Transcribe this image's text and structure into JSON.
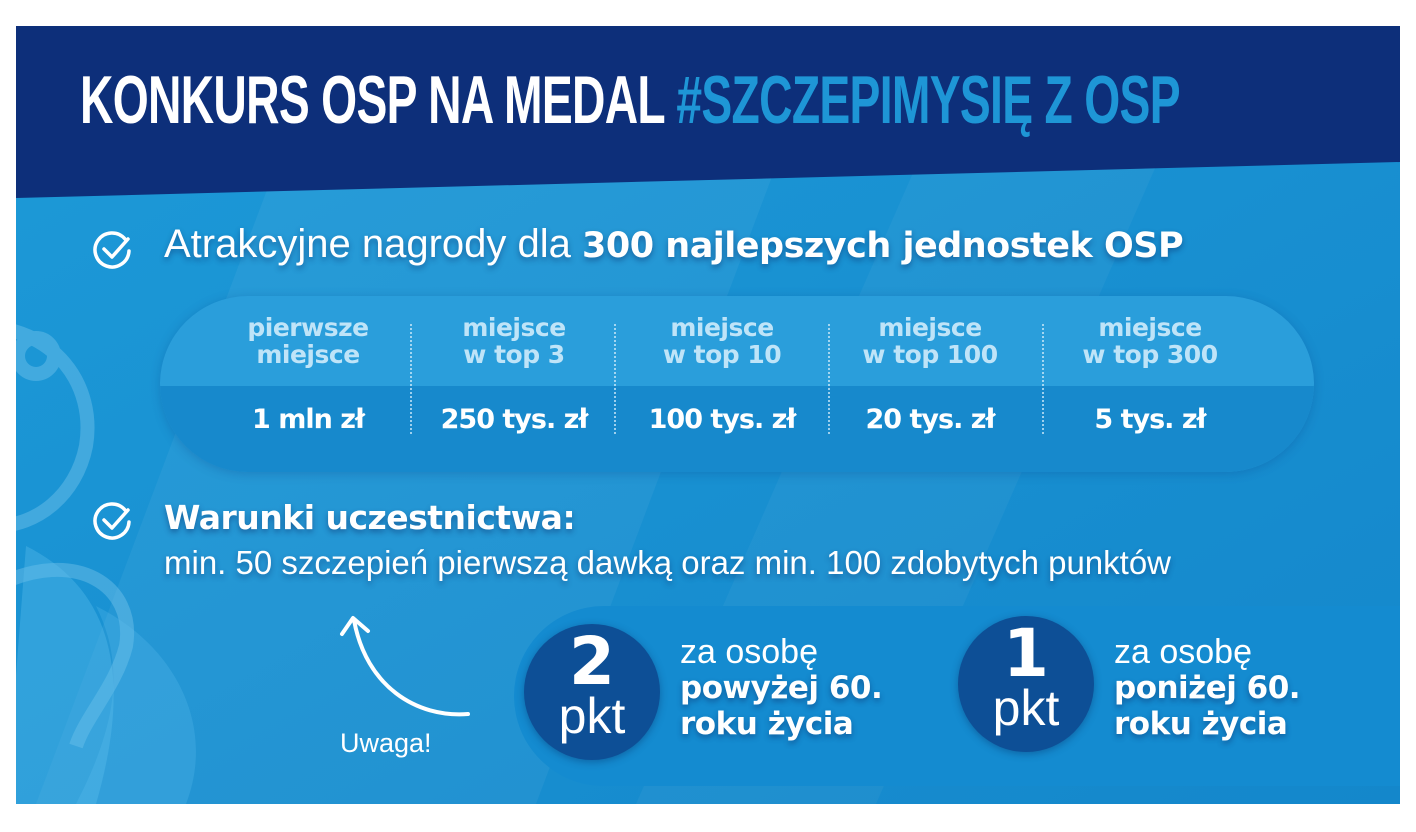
{
  "title": {
    "main": "KONKURS OSP NA MEDAL",
    "hashtag": "#SZCZEPIMYSIĘ Z OSP"
  },
  "prizes": {
    "intro_regular": "Atrakcyjne nagrody dla",
    "intro_bold": "300 najlepszych jednostek OSP",
    "tiers": [
      {
        "line1": "pierwsze",
        "line2": "miejsce",
        "amount": "1 mln zł"
      },
      {
        "line1": "miejsce",
        "line2": "w top 3",
        "amount": "250 tys. zł"
      },
      {
        "line1": "miejsce",
        "line2": "w top 10",
        "amount": "100 tys. zł"
      },
      {
        "line1": "miejsce",
        "line2": "w top 100",
        "amount": "20 tys. zł"
      },
      {
        "line1": "miejsce",
        "line2": "w top 300",
        "amount": "5 tys. zł"
      }
    ]
  },
  "conditions": {
    "heading": "Warunki uczestnictwa:",
    "text": "min. 50 szczepień pierwszą dawką oraz min. 100 zdobytych punktów"
  },
  "note": {
    "label": "Uwaga!"
  },
  "points": [
    {
      "value": "2",
      "unit": "pkt",
      "line1": "za osobę",
      "line2": "powyżej 60.",
      "line3": "roku życia"
    },
    {
      "value": "1",
      "unit": "pkt",
      "line1": "za osobę",
      "line2": "poniżej 60.",
      "line3": "roku życia"
    }
  ],
  "colors": {
    "header_dark": "#0d2f7a",
    "background": "#1a95d3",
    "hashtag": "#1e96d6",
    "circle": "#0d4f96",
    "text": "#ffffff"
  },
  "icons": [
    "check-circle-icon",
    "curved-arrow-icon",
    "firefighter-emblem-icon"
  ]
}
